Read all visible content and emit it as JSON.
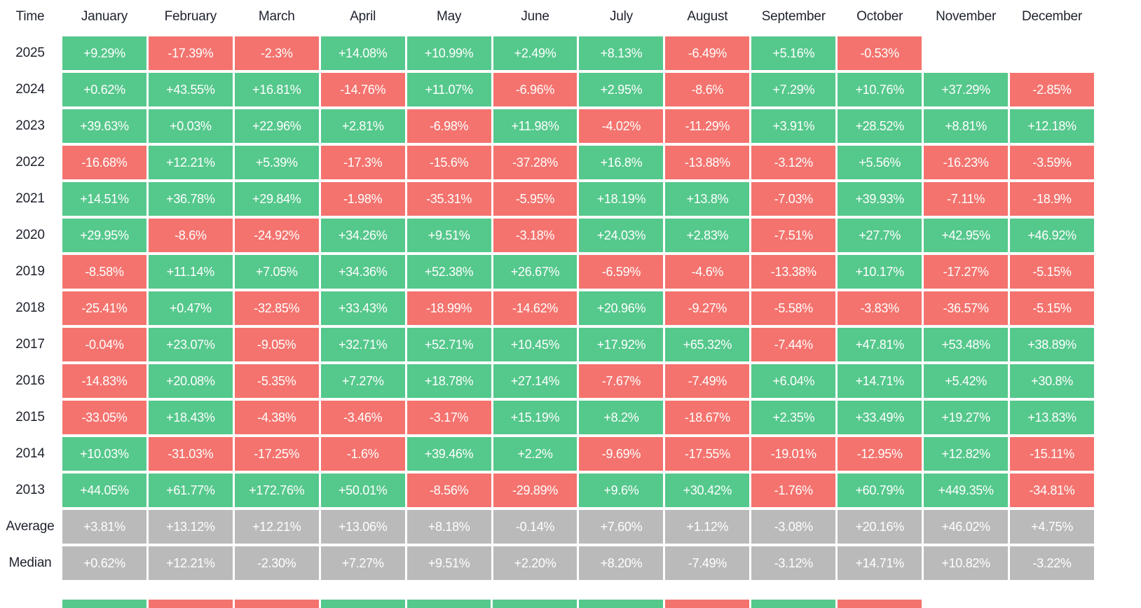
{
  "colors": {
    "positive": "#55c88c",
    "negative": "#f4736e",
    "summary": "#bababa",
    "header_text": "#1e222d",
    "cell_text": "#ffffff"
  },
  "chart_data": {
    "type": "heatmap",
    "corner_label": "Time",
    "columns": [
      "January",
      "February",
      "March",
      "April",
      "May",
      "June",
      "July",
      "August",
      "September",
      "October",
      "November",
      "December"
    ],
    "rows": [
      {
        "label": "2025",
        "kind": "year",
        "values": [
          "+9.29%",
          "-17.39%",
          "-2.3%",
          "+14.08%",
          "+10.99%",
          "+2.49%",
          "+8.13%",
          "-6.49%",
          "+5.16%",
          "-0.53%",
          null,
          null
        ]
      },
      {
        "label": "2024",
        "kind": "year",
        "values": [
          "+0.62%",
          "+43.55%",
          "+16.81%",
          "-14.76%",
          "+11.07%",
          "-6.96%",
          "+2.95%",
          "-8.6%",
          "+7.29%",
          "+10.76%",
          "+37.29%",
          "-2.85%"
        ]
      },
      {
        "label": "2023",
        "kind": "year",
        "values": [
          "+39.63%",
          "+0.03%",
          "+22.96%",
          "+2.81%",
          "-6.98%",
          "+11.98%",
          "-4.02%",
          "-11.29%",
          "+3.91%",
          "+28.52%",
          "+8.81%",
          "+12.18%"
        ]
      },
      {
        "label": "2022",
        "kind": "year",
        "values": [
          "-16.68%",
          "+12.21%",
          "+5.39%",
          "-17.3%",
          "-15.6%",
          "-37.28%",
          "+16.8%",
          "-13.88%",
          "-3.12%",
          "+5.56%",
          "-16.23%",
          "-3.59%"
        ]
      },
      {
        "label": "2021",
        "kind": "year",
        "values": [
          "+14.51%",
          "+36.78%",
          "+29.84%",
          "-1.98%",
          "-35.31%",
          "-5.95%",
          "+18.19%",
          "+13.8%",
          "-7.03%",
          "+39.93%",
          "-7.11%",
          "-18.9%"
        ]
      },
      {
        "label": "2020",
        "kind": "year",
        "values": [
          "+29.95%",
          "-8.6%",
          "-24.92%",
          "+34.26%",
          "+9.51%",
          "-3.18%",
          "+24.03%",
          "+2.83%",
          "-7.51%",
          "+27.7%",
          "+42.95%",
          "+46.92%"
        ]
      },
      {
        "label": "2019",
        "kind": "year",
        "values": [
          "-8.58%",
          "+11.14%",
          "+7.05%",
          "+34.36%",
          "+52.38%",
          "+26.67%",
          "-6.59%",
          "-4.6%",
          "-13.38%",
          "+10.17%",
          "-17.27%",
          "-5.15%"
        ]
      },
      {
        "label": "2018",
        "kind": "year",
        "values": [
          "-25.41%",
          "+0.47%",
          "-32.85%",
          "+33.43%",
          "-18.99%",
          "-14.62%",
          "+20.96%",
          "-9.27%",
          "-5.58%",
          "-3.83%",
          "-36.57%",
          "-5.15%"
        ]
      },
      {
        "label": "2017",
        "kind": "year",
        "values": [
          "-0.04%",
          "+23.07%",
          "-9.05%",
          "+32.71%",
          "+52.71%",
          "+10.45%",
          "+17.92%",
          "+65.32%",
          "-7.44%",
          "+47.81%",
          "+53.48%",
          "+38.89%"
        ]
      },
      {
        "label": "2016",
        "kind": "year",
        "values": [
          "-14.83%",
          "+20.08%",
          "-5.35%",
          "+7.27%",
          "+18.78%",
          "+27.14%",
          "-7.67%",
          "-7.49%",
          "+6.04%",
          "+14.71%",
          "+5.42%",
          "+30.8%"
        ]
      },
      {
        "label": "2015",
        "kind": "year",
        "values": [
          "-33.05%",
          "+18.43%",
          "-4.38%",
          "-3.46%",
          "-3.17%",
          "+15.19%",
          "+8.2%",
          "-18.67%",
          "+2.35%",
          "+33.49%",
          "+19.27%",
          "+13.83%"
        ]
      },
      {
        "label": "2014",
        "kind": "year",
        "values": [
          "+10.03%",
          "-31.03%",
          "-17.25%",
          "-1.6%",
          "+39.46%",
          "+2.2%",
          "-9.69%",
          "-17.55%",
          "-19.01%",
          "-12.95%",
          "+12.82%",
          "-15.11%"
        ]
      },
      {
        "label": "2013",
        "kind": "year",
        "values": [
          "+44.05%",
          "+61.77%",
          "+172.76%",
          "+50.01%",
          "-8.56%",
          "-29.89%",
          "+9.6%",
          "+30.42%",
          "-1.76%",
          "+60.79%",
          "+449.35%",
          "-34.81%"
        ]
      },
      {
        "label": "Average",
        "kind": "summary",
        "values": [
          "+3.81%",
          "+13.12%",
          "+12.21%",
          "+13.06%",
          "+8.18%",
          "-0.14%",
          "+7.60%",
          "+1.12%",
          "-3.08%",
          "+20.16%",
          "+46.02%",
          "+4.75%"
        ]
      },
      {
        "label": "Median",
        "kind": "summary",
        "values": [
          "+0.62%",
          "+12.21%",
          "-2.30%",
          "+7.27%",
          "+9.51%",
          "+2.20%",
          "+8.20%",
          "-7.49%",
          "-3.12%",
          "+14.71%",
          "+10.82%",
          "-3.22%"
        ]
      }
    ],
    "truncated_next_row": {
      "visible": true,
      "colors_match_row": "2025"
    },
    "color_rule": "positive values green, negative values red, Average/Median rows gray",
    "grid": false,
    "legend_position": "none"
  }
}
